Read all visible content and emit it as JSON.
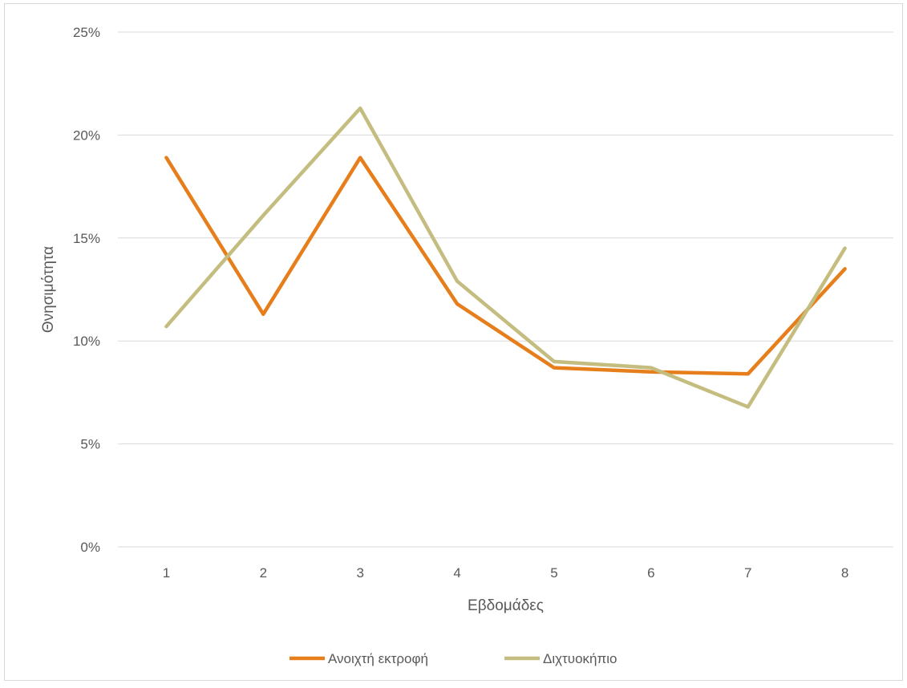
{
  "chart_data": {
    "type": "line",
    "title": "",
    "xlabel": "Εβδομάδες",
    "ylabel": "Θνησιμότητα",
    "categories": [
      "1",
      "2",
      "3",
      "4",
      "5",
      "6",
      "7",
      "8"
    ],
    "y_ticks": [
      "0%",
      "5%",
      "10%",
      "15%",
      "20%",
      "25%"
    ],
    "ylim": [
      0,
      0.25
    ],
    "grid": true,
    "legend_position": "bottom",
    "series": [
      {
        "name": "Ανοιχτή εκτροφή",
        "color": "#e67e1b",
        "values": [
          0.189,
          0.113,
          0.189,
          0.118,
          0.087,
          0.085,
          0.084,
          0.135
        ]
      },
      {
        "name": "Διχτυοκήπιο",
        "color": "#c4bd7f",
        "values": [
          0.107,
          0.161,
          0.213,
          0.129,
          0.09,
          0.087,
          0.068,
          0.145
        ]
      }
    ]
  }
}
